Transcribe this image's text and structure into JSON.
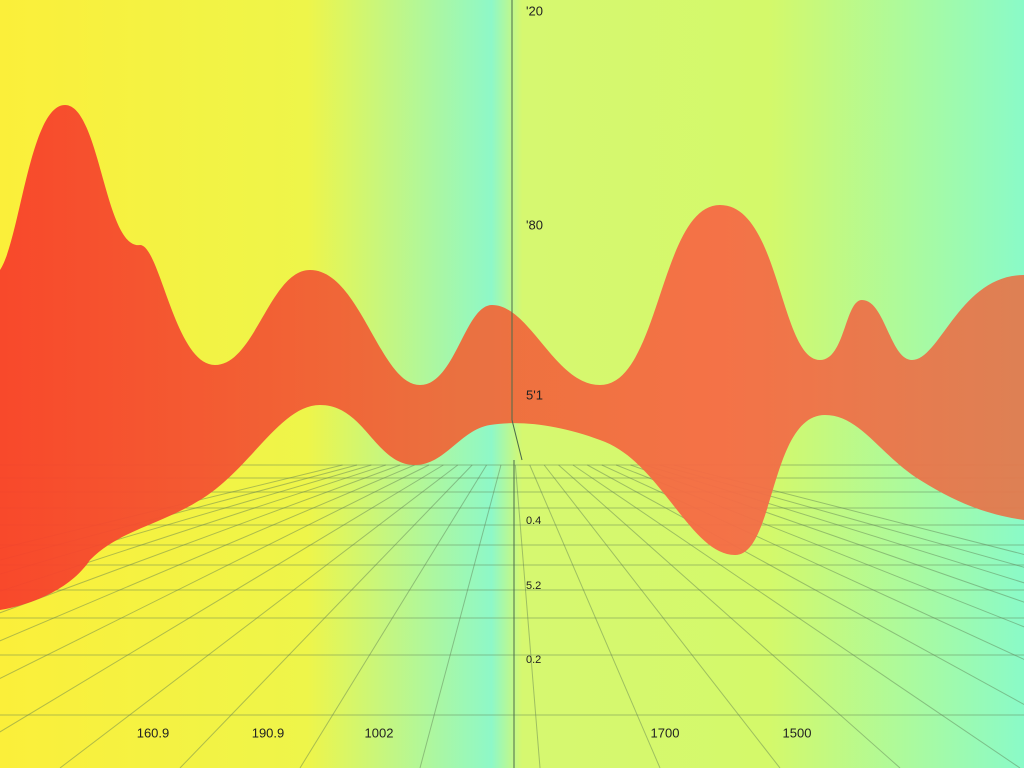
{
  "vertical_labels": [
    "'20",
    "'80",
    "5'1",
    "0.4",
    "5.2",
    "0.2"
  ],
  "horizontal_labels": [
    "160.9",
    "190.9",
    "1002",
    "1700",
    "1500"
  ]
}
